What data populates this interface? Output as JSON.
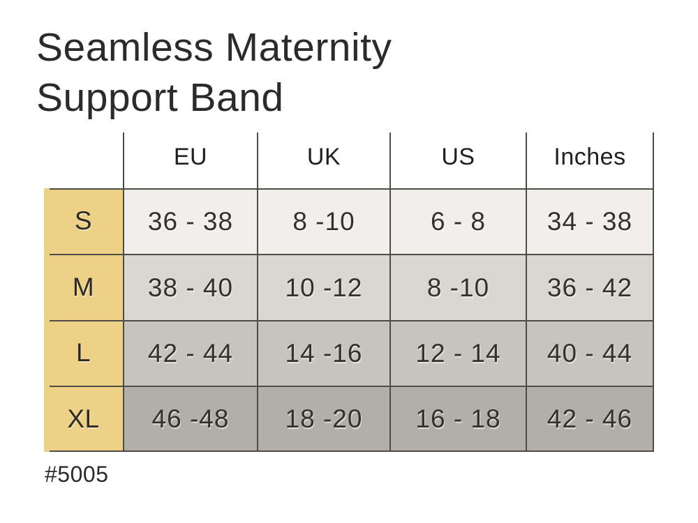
{
  "title": {
    "line1": "Seamless Maternity",
    "line2": "Support Band"
  },
  "product_code": "#5005",
  "colors": {
    "background": "#ffffff",
    "accent_yellow": "#edd186",
    "grid_line": "#4f4b47",
    "row_s_bg": "#f1efec",
    "row_m_bg": "#dad6d1",
    "row_l_bg": "#c7c3bd",
    "row_xl_bg": "#b2aea8",
    "text": "#2b2b2b"
  },
  "chart_data": {
    "type": "table",
    "title": "Seamless Maternity Support Band",
    "columns": [
      "EU",
      "UK",
      "US",
      "Inches"
    ],
    "row_labels": [
      "S",
      "M",
      "L",
      "XL"
    ],
    "rows": [
      {
        "size": "S",
        "values": [
          "36 - 38",
          "8 -10",
          "6 - 8",
          "34 - 38"
        ]
      },
      {
        "size": "M",
        "values": [
          "38 - 40",
          "10 -12",
          "8 -10",
          "36 - 42"
        ]
      },
      {
        "size": "L",
        "values": [
          "42 - 44",
          "14 -16",
          "12 - 14",
          "40 - 44"
        ]
      },
      {
        "size": "XL",
        "values": [
          "46 -48",
          "18 -20",
          "16 - 18",
          "42 - 46"
        ]
      }
    ],
    "layout": "size chart; first column yellow size labels; rows shade darker from S to XL; grid lines dark gray"
  }
}
